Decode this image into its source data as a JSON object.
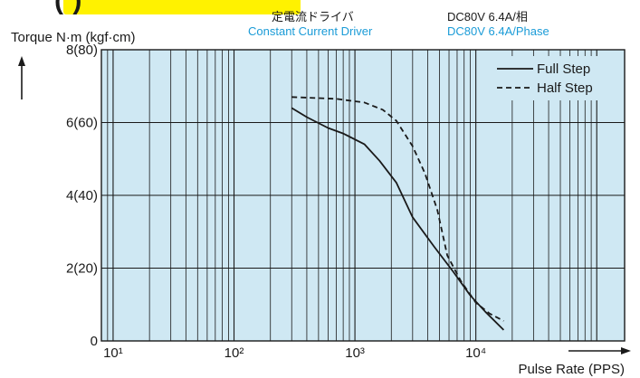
{
  "header": {
    "banner_text": "(         )",
    "driver_jp": "定電流ドライバ",
    "driver_en": "Constant Current Driver",
    "spec_jp": "DC80V 6.4A/相",
    "spec_en": "DC80V 6.4A/Phase"
  },
  "colors": {
    "plot_bg": "#cfe8f3",
    "grid": "#1a1a1a",
    "banner": "#fff200",
    "accent_text": "#1a9bd7"
  },
  "chart_data": {
    "type": "line",
    "xlabel": "Pulse Rate (PPS)",
    "ylabel": "Torque N·m (kgf·cm)",
    "x_scale": "log",
    "xlim": [
      8,
      170000
    ],
    "ylim": [
      0,
      8
    ],
    "x_ticks": [
      {
        "value": 10,
        "label": "10¹"
      },
      {
        "value": 100,
        "label": "10²"
      },
      {
        "value": 1000,
        "label": "10³"
      },
      {
        "value": 10000,
        "label": "10⁴"
      }
    ],
    "y_ticks": [
      {
        "value": 0,
        "label": "0"
      },
      {
        "value": 2,
        "label": "2(20)"
      },
      {
        "value": 4,
        "label": "4(40)"
      },
      {
        "value": 6,
        "label": "6(60)"
      },
      {
        "value": 8,
        "label": "8(80)"
      }
    ],
    "grid": true,
    "legend_position": "top-right",
    "series": [
      {
        "name": "Full Step",
        "style": "solid",
        "points": [
          [
            300,
            6.4
          ],
          [
            400,
            6.15
          ],
          [
            600,
            5.85
          ],
          [
            800,
            5.7
          ],
          [
            1200,
            5.4
          ],
          [
            1600,
            4.95
          ],
          [
            2200,
            4.35
          ],
          [
            3000,
            3.4
          ],
          [
            4500,
            2.6
          ],
          [
            6500,
            1.9
          ],
          [
            9000,
            1.25
          ],
          [
            12000,
            0.8
          ],
          [
            17000,
            0.3
          ]
        ]
      },
      {
        "name": "Half Step",
        "style": "dashed",
        "points": [
          [
            300,
            6.7
          ],
          [
            700,
            6.65
          ],
          [
            1200,
            6.55
          ],
          [
            1700,
            6.35
          ],
          [
            2200,
            6.05
          ],
          [
            3000,
            5.35
          ],
          [
            3800,
            4.6
          ],
          [
            4800,
            3.6
          ],
          [
            5800,
            2.35
          ],
          [
            7500,
            1.65
          ],
          [
            10000,
            1.05
          ],
          [
            13000,
            0.75
          ],
          [
            17000,
            0.55
          ]
        ]
      }
    ]
  }
}
